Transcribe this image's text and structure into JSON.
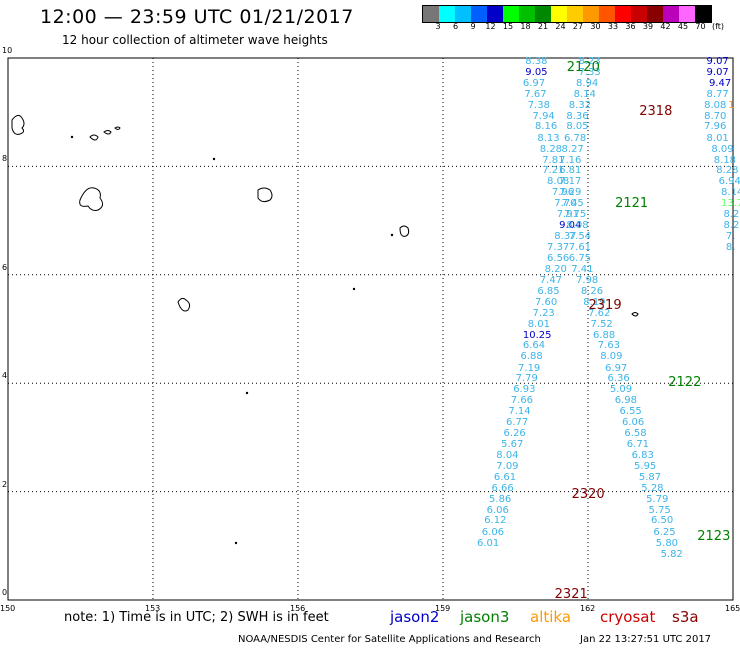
{
  "header": {
    "title": "12:00 — 23:59 UTC 01/21/2017",
    "subtitle": "12 hour collection of altimeter wave heights"
  },
  "colorbar": {
    "colors": [
      "#777777",
      "#00ffff",
      "#00c0ff",
      "#0060ff",
      "#0000c8",
      "#00ff00",
      "#00c000",
      "#008800",
      "#ffff00",
      "#ffcc00",
      "#ff9900",
      "#ff5500",
      "#ff0000",
      "#c80000",
      "#880000",
      "#bb00bb",
      "#ff66ff",
      "#000000"
    ],
    "labels": [
      "3",
      "6",
      "9",
      "12",
      "15",
      "18",
      "21",
      "24",
      "27",
      "30",
      "33",
      "36",
      "39",
      "42",
      "45",
      "70",
      "(ft)"
    ]
  },
  "axes": {
    "x_ticks": [
      "150",
      "153",
      "156",
      "159",
      "162",
      "165"
    ],
    "y_ticks": [
      "0",
      "2",
      "4",
      "6",
      "8",
      "10"
    ]
  },
  "track_labels": [
    {
      "text": "2120",
      "color": "#008000",
      "lon": 161.85,
      "lat": 9.8
    },
    {
      "text": "2318",
      "color": "#800000",
      "lon": 163.35,
      "lat": 8.98
    },
    {
      "text": "2121",
      "color": "#008000",
      "lon": 162.85,
      "lat": 7.29
    },
    {
      "text": "2319",
      "color": "#800000",
      "lon": 162.3,
      "lat": 5.4
    },
    {
      "text": "2122",
      "color": "#008000",
      "lon": 163.95,
      "lat": 3.99
    },
    {
      "text": "2320",
      "color": "#800000",
      "lon": 161.95,
      "lat": 1.91
    },
    {
      "text": "2123",
      "color": "#008000",
      "lon": 164.55,
      "lat": 1.15
    },
    {
      "text": "2321",
      "color": "#800000",
      "lon": 161.6,
      "lat": 0.08
    }
  ],
  "wave_values": [
    {
      "t": "8.38",
      "c": "#3cb4e8",
      "lon": 160.93,
      "lat": 9.9
    },
    {
      "t": "9.05",
      "c": "#0000c8",
      "lon": 160.93,
      "lat": 9.7
    },
    {
      "t": "6.97",
      "c": "#3cb4e8",
      "lon": 160.88,
      "lat": 9.51
    },
    {
      "t": "7.67",
      "c": "#3cb4e8",
      "lon": 160.91,
      "lat": 9.3
    },
    {
      "t": "7.38",
      "c": "#3cb4e8",
      "lon": 160.98,
      "lat": 9.1
    },
    {
      "t": "7.94",
      "c": "#3cb4e8",
      "lon": 161.08,
      "lat": 8.9
    },
    {
      "t": "8.16",
      "c": "#3cb4e8",
      "lon": 161.13,
      "lat": 8.7
    },
    {
      "t": "8.13",
      "c": "#3cb4e8",
      "lon": 161.18,
      "lat": 8.49
    },
    {
      "t": "8.28",
      "c": "#3cb4e8",
      "lon": 161.23,
      "lat": 8.29
    },
    {
      "t": "7.81",
      "c": "#3cb4e8",
      "lon": 161.28,
      "lat": 8.09
    },
    {
      "t": "7.21",
      "c": "#3cb4e8",
      "lon": 161.28,
      "lat": 7.89
    },
    {
      "t": "8.08",
      "c": "#3cb4e8",
      "lon": 161.38,
      "lat": 7.69
    },
    {
      "t": "7.96",
      "c": "#3cb4e8",
      "lon": 161.48,
      "lat": 7.49
    },
    {
      "t": "7.70",
      "c": "#3cb4e8",
      "lon": 161.53,
      "lat": 7.28
    },
    {
      "t": "7.91",
      "c": "#3cb4e8",
      "lon": 161.58,
      "lat": 7.08
    },
    {
      "t": "9.04",
      "c": "#0000c8",
      "lon": 161.63,
      "lat": 6.88
    },
    {
      "t": "8.37",
      "c": "#3cb4e8",
      "lon": 161.53,
      "lat": 6.68
    },
    {
      "t": "7.37",
      "c": "#3cb4e8",
      "lon": 161.38,
      "lat": 6.48
    },
    {
      "t": "6.56",
      "c": "#3cb4e8",
      "lon": 161.38,
      "lat": 6.27
    },
    {
      "t": "8.20",
      "c": "#3cb4e8",
      "lon": 161.33,
      "lat": 6.07
    },
    {
      "t": "7.47",
      "c": "#3cb4e8",
      "lon": 161.23,
      "lat": 5.87
    },
    {
      "t": "6.85",
      "c": "#3cb4e8",
      "lon": 161.18,
      "lat": 5.67
    },
    {
      "t": "7.60",
      "c": "#3cb4e8",
      "lon": 161.13,
      "lat": 5.47
    },
    {
      "t": "7.23",
      "c": "#3cb4e8",
      "lon": 161.08,
      "lat": 5.26
    },
    {
      "t": "8.01",
      "c": "#3cb4e8",
      "lon": 160.98,
      "lat": 5.06
    },
    {
      "t": "10.25",
      "c": "#0000c8",
      "lon": 160.88,
      "lat": 4.86
    },
    {
      "t": "6.64",
      "c": "#3cb4e8",
      "lon": 160.88,
      "lat": 4.66
    },
    {
      "t": "6.88",
      "c": "#3cb4e8",
      "lon": 160.83,
      "lat": 4.46
    },
    {
      "t": "7.19",
      "c": "#3cb4e8",
      "lon": 160.78,
      "lat": 4.25
    },
    {
      "t": "7.79",
      "c": "#3cb4e8",
      "lon": 160.73,
      "lat": 4.05
    },
    {
      "t": "6.93",
      "c": "#3cb4e8",
      "lon": 160.68,
      "lat": 3.85
    },
    {
      "t": "7.66",
      "c": "#3cb4e8",
      "lon": 160.63,
      "lat": 3.65
    },
    {
      "t": "7.14",
      "c": "#3cb4e8",
      "lon": 160.58,
      "lat": 3.45
    },
    {
      "t": "6.77",
      "c": "#3cb4e8",
      "lon": 160.53,
      "lat": 3.24
    },
    {
      "t": "6.26",
      "c": "#3cb4e8",
      "lon": 160.48,
      "lat": 3.04
    },
    {
      "t": "5.67",
      "c": "#3cb4e8",
      "lon": 160.43,
      "lat": 2.84
    },
    {
      "t": "8.04",
      "c": "#3cb4e8",
      "lon": 160.33,
      "lat": 2.64
    },
    {
      "t": "7.09",
      "c": "#3cb4e8",
      "lon": 160.33,
      "lat": 2.44
    },
    {
      "t": "6.61",
      "c": "#3cb4e8",
      "lon": 160.28,
      "lat": 2.23
    },
    {
      "t": "6.66",
      "c": "#3cb4e8",
      "lon": 160.23,
      "lat": 2.03
    },
    {
      "t": "5.86",
      "c": "#3cb4e8",
      "lon": 160.18,
      "lat": 1.83
    },
    {
      "t": "6.06",
      "c": "#3cb4e8",
      "lon": 160.13,
      "lat": 1.63
    },
    {
      "t": "6.12",
      "c": "#3cb4e8",
      "lon": 160.08,
      "lat": 1.43
    },
    {
      "t": "6.06",
      "c": "#3cb4e8",
      "lon": 160.03,
      "lat": 1.22
    },
    {
      "t": "6.01",
      "c": "#3cb4e8",
      "lon": 159.93,
      "lat": 1.02
    },
    {
      "t": "8.23",
      "c": "#3cb4e8",
      "lon": 162.03,
      "lat": 9.9
    },
    {
      "t": "7.33",
      "c": "#3cb4e8",
      "lon": 162.03,
      "lat": 9.7
    },
    {
      "t": "8.94",
      "c": "#3cb4e8",
      "lon": 161.98,
      "lat": 9.51
    },
    {
      "t": "8.14",
      "c": "#3cb4e8",
      "lon": 161.93,
      "lat": 9.3
    },
    {
      "t": "8.32",
      "c": "#3cb4e8",
      "lon": 161.83,
      "lat": 9.1
    },
    {
      "t": "8.36",
      "c": "#3cb4e8",
      "lon": 161.78,
      "lat": 8.9
    },
    {
      "t": "8.05",
      "c": "#3cb4e8",
      "lon": 161.78,
      "lat": 8.7
    },
    {
      "t": "6.78",
      "c": "#3cb4e8",
      "lon": 161.73,
      "lat": 8.49
    },
    {
      "t": "8.27",
      "c": "#3cb4e8",
      "lon": 161.68,
      "lat": 8.29
    },
    {
      "t": "7.16",
      "c": "#3cb4e8",
      "lon": 161.63,
      "lat": 8.09
    },
    {
      "t": "6.81",
      "c": "#3cb4e8",
      "lon": 161.63,
      "lat": 7.89
    },
    {
      "t": "7.17",
      "c": "#3cb4e8",
      "lon": 161.63,
      "lat": 7.69
    },
    {
      "t": "7.29",
      "c": "#3cb4e8",
      "lon": 161.63,
      "lat": 7.49
    },
    {
      "t": "7.45",
      "c": "#3cb4e8",
      "lon": 161.68,
      "lat": 7.28
    },
    {
      "t": "7.75",
      "c": "#3cb4e8",
      "lon": 161.73,
      "lat": 7.08
    },
    {
      "t": "8.08",
      "c": "#3cb4e8",
      "lon": 161.78,
      "lat": 6.88
    },
    {
      "t": "7.54",
      "c": "#3cb4e8",
      "lon": 161.83,
      "lat": 6.68
    },
    {
      "t": "7.61",
      "c": "#3cb4e8",
      "lon": 161.83,
      "lat": 6.48
    },
    {
      "t": "6.75",
      "c": "#3cb4e8",
      "lon": 161.83,
      "lat": 6.27
    },
    {
      "t": "7.41",
      "c": "#3cb4e8",
      "lon": 161.88,
      "lat": 6.07
    },
    {
      "t": "7.98",
      "c": "#3cb4e8",
      "lon": 161.98,
      "lat": 5.87
    },
    {
      "t": "8.26",
      "c": "#3cb4e8",
      "lon": 162.08,
      "lat": 5.67
    },
    {
      "t": "8.19",
      "c": "#3cb4e8",
      "lon": 162.13,
      "lat": 5.47
    },
    {
      "t": "7.62",
      "c": "#3cb4e8",
      "lon": 162.23,
      "lat": 5.26
    },
    {
      "t": "7.52",
      "c": "#3cb4e8",
      "lon": 162.28,
      "lat": 5.06
    },
    {
      "t": "6.88",
      "c": "#3cb4e8",
      "lon": 162.33,
      "lat": 4.86
    },
    {
      "t": "7.63",
      "c": "#3cb4e8",
      "lon": 162.43,
      "lat": 4.66
    },
    {
      "t": "8.09",
      "c": "#3cb4e8",
      "lon": 162.48,
      "lat": 4.46
    },
    {
      "t": "6.97",
      "c": "#3cb4e8",
      "lon": 162.58,
      "lat": 4.25
    },
    {
      "t": "6.36",
      "c": "#3cb4e8",
      "lon": 162.63,
      "lat": 4.05
    },
    {
      "t": "5.09",
      "c": "#3cb4e8",
      "lon": 162.68,
      "lat": 3.85
    },
    {
      "t": "6.98",
      "c": "#3cb4e8",
      "lon": 162.78,
      "lat": 3.65
    },
    {
      "t": "6.55",
      "c": "#3cb4e8",
      "lon": 162.88,
      "lat": 3.45
    },
    {
      "t": "6.06",
      "c": "#3cb4e8",
      "lon": 162.93,
      "lat": 3.24
    },
    {
      "t": "6.58",
      "c": "#3cb4e8",
      "lon": 162.98,
      "lat": 3.04
    },
    {
      "t": "6.71",
      "c": "#3cb4e8",
      "lon": 163.03,
      "lat": 2.84
    },
    {
      "t": "6.83",
      "c": "#3cb4e8",
      "lon": 163.13,
      "lat": 2.64
    },
    {
      "t": "5.95",
      "c": "#3cb4e8",
      "lon": 163.18,
      "lat": 2.44
    },
    {
      "t": "5.87",
      "c": "#3cb4e8",
      "lon": 163.28,
      "lat": 2.23
    },
    {
      "t": "5.28",
      "c": "#3cb4e8",
      "lon": 163.33,
      "lat": 2.03
    },
    {
      "t": "5.79",
      "c": "#3cb4e8",
      "lon": 163.43,
      "lat": 1.83
    },
    {
      "t": "5.75",
      "c": "#3cb4e8",
      "lon": 163.48,
      "lat": 1.63
    },
    {
      "t": "6.50",
      "c": "#3cb4e8",
      "lon": 163.53,
      "lat": 1.43
    },
    {
      "t": "6.25",
      "c": "#3cb4e8",
      "lon": 163.58,
      "lat": 1.22
    },
    {
      "t": "5.80",
      "c": "#3cb4e8",
      "lon": 163.63,
      "lat": 1.02
    },
    {
      "t": "5.82",
      "c": "#3cb4e8",
      "lon": 163.73,
      "lat": 0.81
    },
    {
      "t": "9.07",
      "c": "#0000c8",
      "lon": 164.68,
      "lat": 9.9
    },
    {
      "t": "9.07",
      "c": "#0000c8",
      "lon": 164.68,
      "lat": 9.7
    },
    {
      "t": "9.47",
      "c": "#0000c8",
      "lon": 164.73,
      "lat": 9.51
    },
    {
      "t": "8.77",
      "c": "#3cb4e8",
      "lon": 164.68,
      "lat": 9.3
    },
    {
      "t": "8.08",
      "c": "#3cb4e8",
      "lon": 164.63,
      "lat": 9.1
    },
    {
      "t": "8.70",
      "c": "#3cb4e8",
      "lon": 164.63,
      "lat": 8.9
    },
    {
      "t": "7.96",
      "c": "#3cb4e8",
      "lon": 164.63,
      "lat": 8.7
    },
    {
      "t": "8.01",
      "c": "#3cb4e8",
      "lon": 164.68,
      "lat": 8.49
    },
    {
      "t": "8.09",
      "c": "#3cb4e8",
      "lon": 164.78,
      "lat": 8.29
    },
    {
      "t": "8.18",
      "c": "#3cb4e8",
      "lon": 164.83,
      "lat": 8.09
    },
    {
      "t": "8.28",
      "c": "#3cb4e8",
      "lon": 164.88,
      "lat": 7.89
    },
    {
      "t": "6.94",
      "c": "#3cb4e8",
      "lon": 164.93,
      "lat": 7.69
    },
    {
      "t": "8.14",
      "c": "#3cb4e8",
      "lon": 164.98,
      "lat": 7.49
    },
    {
      "t": "13.7",
      "c": "#66ff66",
      "lon": 164.98,
      "lat": 7.28
    },
    {
      "t": "8.2",
      "c": "#3cb4e8",
      "lon": 165.03,
      "lat": 7.08
    },
    {
      "t": "8.2",
      "c": "#3cb4e8",
      "lon": 165.03,
      "lat": 6.88
    },
    {
      "t": "7.",
      "c": "#3cb4e8",
      "lon": 165.08,
      "lat": 6.68
    },
    {
      "t": "8.",
      "c": "#3cb4e8",
      "lon": 165.08,
      "lat": 6.48
    },
    {
      "t": "1",
      "c": "#ff9900",
      "lon": 165.13,
      "lat": 9.1
    }
  ],
  "note": "note: 1) Time is in UTC; 2) SWH is in feet",
  "satellites": [
    {
      "name": "jason2",
      "color": "#0000c8"
    },
    {
      "name": "jason3",
      "color": "#008000"
    },
    {
      "name": "altika",
      "color": "#ff9900"
    },
    {
      "name": "cryosat",
      "color": "#cc0000"
    },
    {
      "name": "s3a",
      "color": "#880000"
    }
  ],
  "footer": {
    "org": "NOAA/NESDIS Center for Satellite Applications and Research",
    "timestamp": "Jan 22 13:27:51 UTC 2017"
  }
}
